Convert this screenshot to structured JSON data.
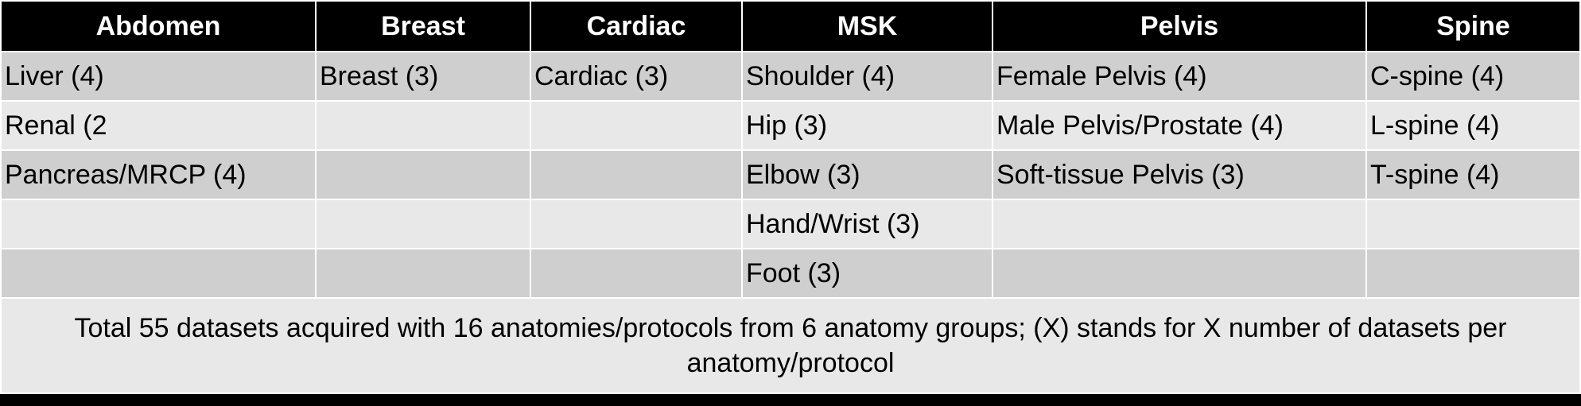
{
  "headers": [
    "Abdomen",
    "Breast",
    "Cardiac",
    "MSK",
    "Pelvis",
    "Spine"
  ],
  "rows": [
    [
      "Liver (4)",
      "Breast (3)",
      "Cardiac (3)",
      "Shoulder (4)",
      "Female Pelvis (4)",
      "C-spine (4)"
    ],
    [
      "Renal (2",
      "",
      "",
      "Hip (3)",
      "Male Pelvis/Prostate (4)",
      "L-spine (4)"
    ],
    [
      "Pancreas/MRCP (4)",
      "",
      "",
      "Elbow (3)",
      "Soft-tissue Pelvis (3)",
      "T-spine (4)"
    ],
    [
      "",
      "",
      "",
      "Hand/Wrist (3)",
      "",
      ""
    ],
    [
      "",
      "",
      "",
      "Foot (3)",
      "",
      ""
    ]
  ],
  "footnote": "Total 55 datasets acquired with 16 anatomies/protocols from 6 anatomy groups; (X) stands for X number of datasets per anatomy/protocol",
  "colors": {
    "header_bg": "#000000",
    "header_text": "#ffffff",
    "row_dark": "#cfcfcf",
    "row_light": "#e8e8e8",
    "grid": "#ffffff"
  }
}
